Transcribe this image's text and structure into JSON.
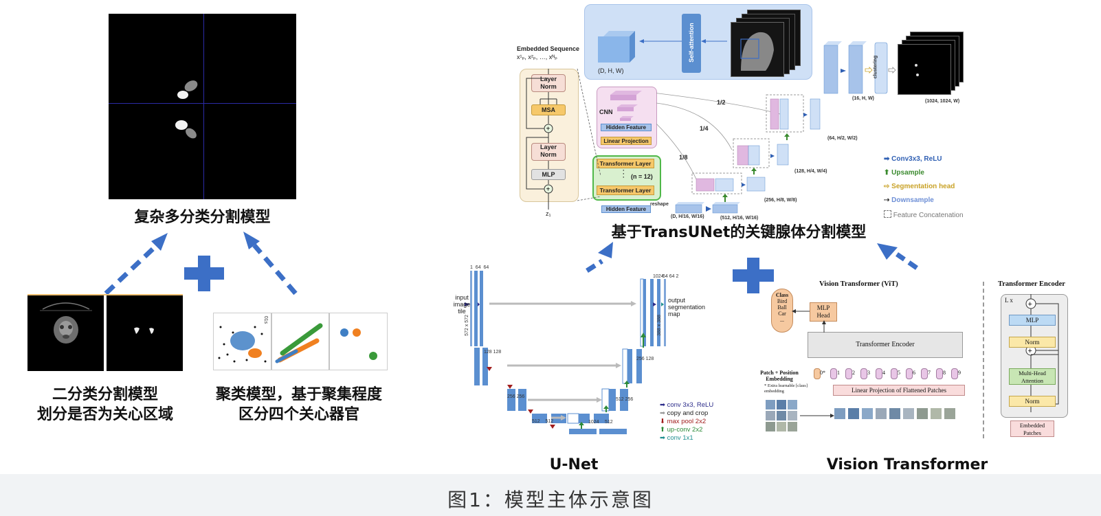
{
  "caption": "图1：模型主体示意图",
  "panels": {
    "multiclass": {
      "title": "复杂多分类分割模型"
    },
    "binary": {
      "title_line1": "二分类分割模型",
      "title_line2": "划分是否为关心区域"
    },
    "cluster": {
      "title_line1": "聚类模型，基于聚集程度",
      "title_line2": "区分四个关心器官",
      "axis_label": "01s"
    },
    "transunet": {
      "title": "基于TransUNet的关键腺体分割模型",
      "embedded_sequence": "Embedded Sequence",
      "seq_formula": "x¹ₚ, x²ₚ, …, xᴺₚ",
      "layer_norm": "Layer Norm",
      "msa": "MSA",
      "mlp": "MLP",
      "z_label": "z₁",
      "cnn": "CNN",
      "hidden_feature": "Hidden Feature",
      "linear_projection": "Linear Projection",
      "transformer_layer": "Transformer Layer",
      "n_label": "(n = 12)",
      "reshape": "reshape",
      "self_attention": "Self-attention",
      "dhw": "(D, H, W)",
      "clustering": "clustering",
      "dims": {
        "d16": "(D, H/16, W/16)",
        "d512": "(512, H/16, W/16)",
        "d256": "(256, H/8, W/8)",
        "d128": "(128, H/4, W/4)",
        "d64": "(64, H/2, W/2)",
        "d16hw": "(16, H, W)",
        "d1024": "(1024, 1024, W)"
      },
      "skips": [
        "1/2",
        "1/4",
        "1/8"
      ],
      "legend": [
        {
          "label": "Conv3x3, ReLU",
          "color": "#2f5fb3",
          "icon": "right-arrow-icon"
        },
        {
          "label": "Upsample",
          "color": "#3a8a2e",
          "icon": "up-arrow-icon"
        },
        {
          "label": "Segmentation head",
          "color": "#c9a227",
          "icon": "hollow-arrow-icon"
        },
        {
          "label": "Downsample",
          "color": "#6d8fd6",
          "icon": "dashed-arrow-icon"
        },
        {
          "label": "Feature Concatenation",
          "color": "#777777",
          "icon": "dashed-box-icon"
        }
      ]
    },
    "unet": {
      "title": "U-Net",
      "input_label": "input\nimage\ntile",
      "output_label": "output\nsegmentation\nmap",
      "channels": [
        "1",
        "64",
        "64",
        "128",
        "128",
        "256",
        "256",
        "512",
        "512",
        "1024",
        "512",
        "256",
        "128",
        "64",
        "64",
        "2"
      ],
      "sizes": [
        "572 x 572",
        "570 x 570",
        "568 x 568",
        "284²",
        "282²",
        "280²",
        "140²",
        "138²",
        "136²",
        "68²",
        "66²",
        "64²",
        "32²",
        "30²",
        "28²",
        "392 x 392",
        "388 x 388"
      ],
      "legend": [
        {
          "label": "conv 3x3, ReLU",
          "color": "#2c2c8a",
          "icon": "right-arrow-icon"
        },
        {
          "label": "copy and crop",
          "color": "#999999",
          "icon": "gray-arrow-icon"
        },
        {
          "label": "max pool 2x2",
          "color": "#a11d1d",
          "icon": "down-arrow-icon"
        },
        {
          "label": "up-conv 2x2",
          "color": "#2e8b3a",
          "icon": "up-arrow-icon"
        },
        {
          "label": "conv 1x1",
          "color": "#1f8f8f",
          "icon": "teal-arrow-icon"
        }
      ]
    },
    "vit": {
      "title": "Vision Transformer",
      "vit_label": "Vision Transformer (ViT)",
      "encoder_title": "Transformer Encoder",
      "class_box": {
        "title": "Class",
        "items": [
          "Bird",
          "Ball",
          "Car",
          "..."
        ]
      },
      "mlp_head": "MLP Head",
      "transformer_encoder": "Transformer Encoder",
      "patch_embedding": "Patch + Position Embedding",
      "extra_note": "* Extra learnable [class] embedding",
      "linear_projection": "Linear Projection of Flattened Patches",
      "tokens": [
        "0*",
        "1",
        "2",
        "3",
        "4",
        "5",
        "6",
        "7",
        "8",
        "9"
      ],
      "encoder_blocks": [
        "MLP",
        "Norm",
        "Multi-Head Attention",
        "Norm",
        "Embedded Patches"
      ],
      "lx": "L x"
    }
  }
}
